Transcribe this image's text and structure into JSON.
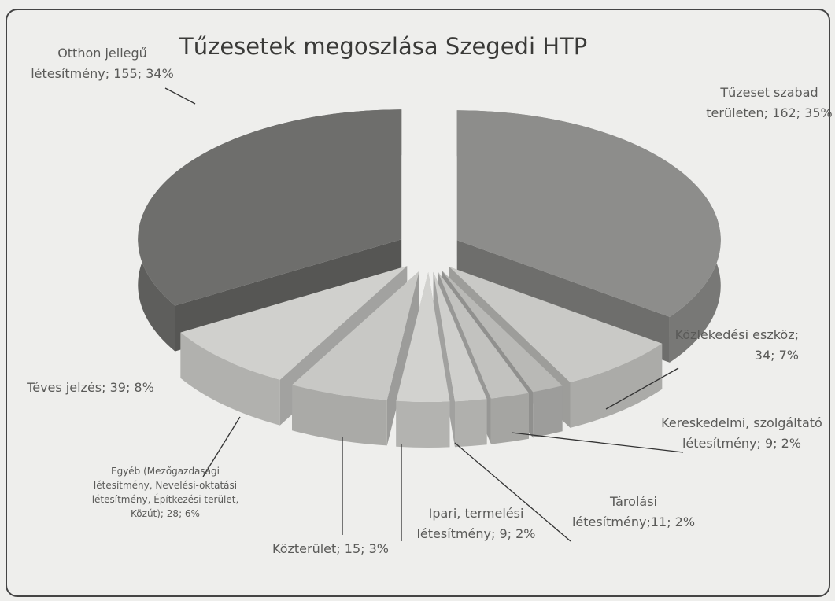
{
  "chart_data": {
    "type": "pie3d",
    "title": "Tűzesetek megoszlása Szegedi HTP",
    "values": [
      162,
      34,
      9,
      11,
      9,
      15,
      28,
      39,
      155
    ],
    "value_labels": [
      "Tűzeset szabad területen; 162; 35%",
      "Közlekedési eszköz; 34; 7%",
      "Kereskedelmi, szolgáltató létesítmény; 9; 2%",
      "Tárolási létesítmény;11; 2%",
      "Ipari, termelési létesítmény; 9; 2%",
      "Közterület; 15; 3%",
      "Egyéb (Mezőgazdasági létesítmény, Nevelési-oktatási létesítmény, Építkezési terület, Közút); 28; 6%",
      "Téves jelzés; 39; 8%",
      "Otthon jellegű létesítmény; 155; 34%"
    ],
    "colors": [
      "#8d8d8b",
      "#c9c9c6",
      "#b9b9b6",
      "#c2c2bf",
      "#cfcfcc",
      "#d2d2cf",
      "#c8c8c5",
      "#d0d0cd",
      "#6e6e6c"
    ]
  }
}
